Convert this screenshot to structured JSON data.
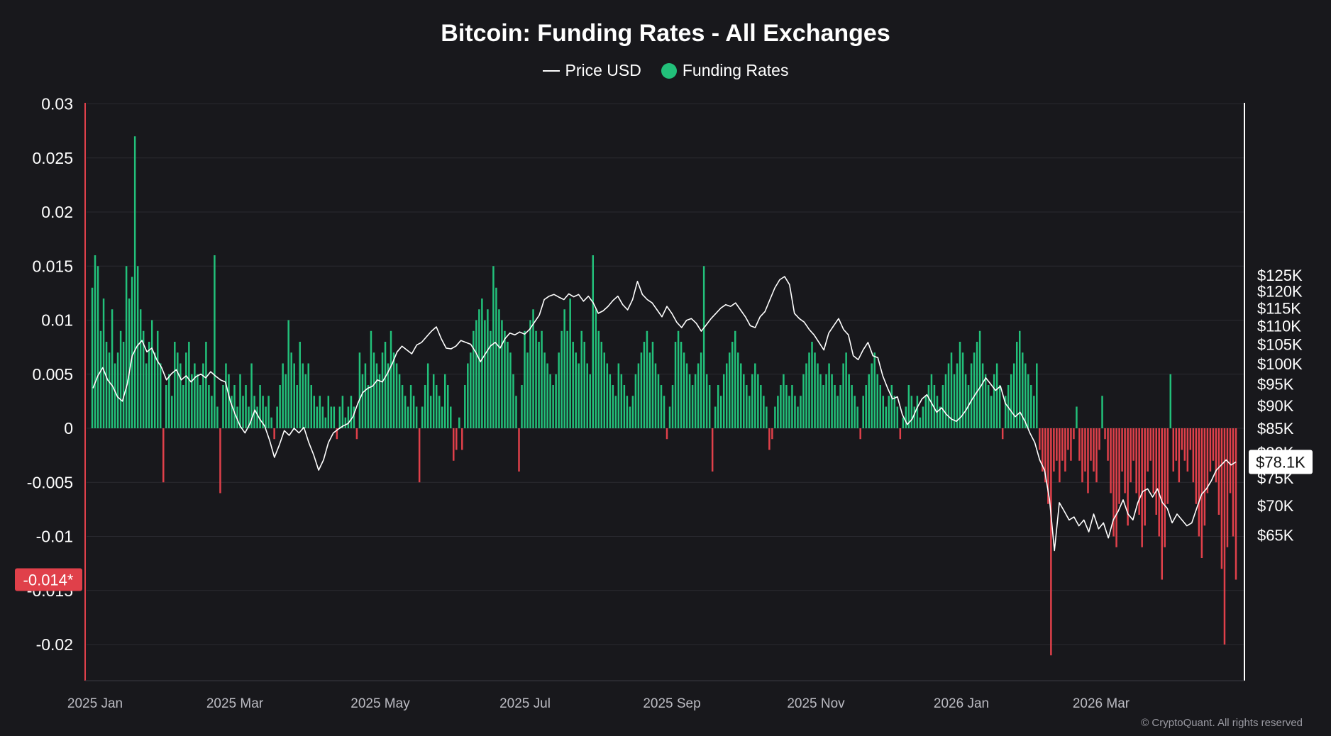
{
  "title": "Bitcoin: Funding Rates - All Exchanges",
  "legend": {
    "price_label": "Price USD",
    "funding_label": "Funding Rates"
  },
  "colors": {
    "background": "#18181c",
    "grid": "#2a2a30",
    "positive": "#22c07a",
    "negative": "#e0404a",
    "price": "#ffffff"
  },
  "watermark": "© CryptoQuant. All rights reserved",
  "chart_data": {
    "type": "bar",
    "x_ticks": [
      "2025 Jan",
      "2025 Mar",
      "2025 May",
      "2025 Jul",
      "2025 Sep",
      "2025 Nov",
      "2026 Jan",
      "2026 Mar"
    ],
    "y_left": {
      "ticks": [
        0.03,
        0.025,
        0.02,
        0.015,
        0.01,
        0.005,
        0,
        -0.005,
        -0.01,
        -0.015,
        -0.02
      ],
      "tick_labels": [
        "0.03",
        "0.025",
        "0.02",
        "0.015",
        "0.01",
        "0.005",
        "0",
        "-0.005",
        "-0.01",
        "-0.015",
        "-0.02"
      ],
      "range": [
        -0.0235,
        0.03
      ]
    },
    "y_right": {
      "tick_values": [
        125000,
        120000,
        115000,
        110000,
        105000,
        100000,
        95000,
        90000,
        85000,
        80000,
        75000,
        70000,
        65000
      ],
      "tick_labels": [
        "$125K",
        "$120K",
        "$115K",
        "$110K",
        "$105K",
        "$100K",
        "$95K",
        "$90K",
        "$85K",
        "$80K",
        "$75K",
        "$70K",
        "$65K"
      ],
      "scale": "log"
    },
    "current_funding_label": "-0.014*",
    "current_funding_value": -0.014,
    "current_price_label": "$78.1K",
    "current_price_value": 78100,
    "series": [
      {
        "name": "Funding Rates",
        "values": [
          0.013,
          0.016,
          0.015,
          0.009,
          0.012,
          0.008,
          0.007,
          0.011,
          0.006,
          0.007,
          0.009,
          0.008,
          0.015,
          0.012,
          0.014,
          0.027,
          0.015,
          0.011,
          0.009,
          0.006,
          0.008,
          0.01,
          0.007,
          0.009,
          0.006,
          -0.005,
          0.004,
          0.005,
          0.003,
          0.008,
          0.007,
          0.006,
          0.004,
          0.007,
          0.008,
          0.005,
          0.006,
          0.005,
          0.004,
          0.006,
          0.008,
          0.004,
          0.003,
          0.016,
          0.002,
          -0.006,
          0.004,
          0.006,
          0.005,
          0.003,
          0.004,
          0.002,
          0.005,
          0.003,
          0.004,
          0.002,
          0.006,
          0.003,
          0.002,
          0.004,
          0.003,
          0.002,
          0.003,
          0.001,
          -0.001,
          0.002,
          0.004,
          0.006,
          0.005,
          0.01,
          0.007,
          0.006,
          0.004,
          0.008,
          0.006,
          0.005,
          0.006,
          0.004,
          0.003,
          0.002,
          0.003,
          0.002,
          0.001,
          0.003,
          0.002,
          0.002,
          -0.001,
          0.002,
          0.003,
          0.001,
          0.002,
          0.003,
          0.002,
          -0.001,
          0.007,
          0.005,
          0.006,
          0.004,
          0.009,
          0.007,
          0.006,
          0.005,
          0.007,
          0.008,
          0.006,
          0.009,
          0.007,
          0.006,
          0.005,
          0.004,
          0.003,
          0.002,
          0.004,
          0.003,
          0.002,
          -0.005,
          0.002,
          0.004,
          0.006,
          0.003,
          0.005,
          0.004,
          0.003,
          0.002,
          0.005,
          0.004,
          0.002,
          -0.003,
          -0.002,
          0.001,
          -0.002,
          0.004,
          0.006,
          0.007,
          0.009,
          0.01,
          0.011,
          0.012,
          0.01,
          0.011,
          0.009,
          0.015,
          0.013,
          0.011,
          0.01,
          0.009,
          0.008,
          0.007,
          0.005,
          0.003,
          -0.004,
          0.004,
          0.009,
          0.007,
          0.01,
          0.011,
          0.009,
          0.008,
          0.009,
          0.007,
          0.006,
          0.005,
          0.004,
          0.005,
          0.007,
          0.009,
          0.011,
          0.009,
          0.012,
          0.008,
          0.007,
          0.006,
          0.009,
          0.008,
          0.006,
          0.005,
          0.016,
          0.011,
          0.009,
          0.008,
          0.007,
          0.006,
          0.005,
          0.004,
          0.003,
          0.006,
          0.005,
          0.004,
          0.003,
          0.002,
          0.003,
          0.005,
          0.006,
          0.007,
          0.008,
          0.009,
          0.007,
          0.008,
          0.006,
          0.005,
          0.004,
          0.003,
          -0.001,
          0.002,
          0.004,
          0.008,
          0.009,
          0.008,
          0.007,
          0.006,
          0.005,
          0.004,
          0.005,
          0.006,
          0.007,
          0.015,
          0.005,
          0.004,
          -0.004,
          0.002,
          0.004,
          0.003,
          0.005,
          0.006,
          0.007,
          0.008,
          0.009,
          0.007,
          0.006,
          0.005,
          0.004,
          0.003,
          0.005,
          0.006,
          0.005,
          0.004,
          0.003,
          0.002,
          -0.002,
          -0.001,
          0.002,
          0.003,
          0.004,
          0.005,
          0.004,
          0.003,
          0.004,
          0.003,
          0.002,
          0.003,
          0.005,
          0.006,
          0.007,
          0.008,
          0.007,
          0.006,
          0.005,
          0.004,
          0.005,
          0.006,
          0.005,
          0.004,
          0.003,
          0.004,
          0.006,
          0.007,
          0.005,
          0.004,
          0.003,
          0.002,
          -0.001,
          0.003,
          0.004,
          0.005,
          0.006,
          0.007,
          0.005,
          0.004,
          0.003,
          0.002,
          0.003,
          0.004,
          0.003,
          0.002,
          -0.001,
          0.001,
          0.002,
          0.004,
          0.003,
          0.002,
          0.003,
          0.001,
          0.002,
          0.003,
          0.004,
          0.005,
          0.004,
          0.003,
          0.002,
          0.004,
          0.005,
          0.006,
          0.007,
          0.005,
          0.006,
          0.008,
          0.007,
          0.005,
          0.004,
          0.006,
          0.007,
          0.008,
          0.009,
          0.006,
          0.005,
          0.004,
          0.003,
          0.005,
          0.006,
          0.004,
          -0.001,
          0.003,
          0.004,
          0.005,
          0.006,
          0.008,
          0.009,
          0.007,
          0.006,
          0.005,
          0.004,
          0.003,
          0.006,
          -0.002,
          -0.004,
          -0.005,
          -0.007,
          -0.021,
          -0.004,
          -0.003,
          -0.005,
          -0.003,
          -0.004,
          -0.002,
          -0.003,
          -0.001,
          0.002,
          -0.003,
          -0.005,
          -0.004,
          -0.006,
          -0.003,
          -0.004,
          -0.005,
          -0.002,
          0.003,
          -0.001,
          -0.003,
          -0.006,
          -0.01,
          -0.011,
          -0.007,
          -0.004,
          -0.006,
          -0.009,
          -0.005,
          -0.003,
          -0.006,
          -0.008,
          -0.011,
          -0.009,
          -0.004,
          -0.003,
          -0.006,
          -0.008,
          -0.01,
          -0.014,
          -0.011,
          -0.007,
          0.005,
          -0.004,
          -0.003,
          -0.005,
          -0.002,
          -0.003,
          -0.004,
          -0.002,
          -0.005,
          -0.007,
          -0.01,
          -0.012,
          -0.009,
          -0.006,
          -0.004,
          -0.003,
          -0.005,
          -0.008,
          -0.013,
          -0.02,
          -0.011,
          -0.006,
          -0.01,
          -0.014
        ]
      },
      {
        "name": "Price USD",
        "values": [
          94000,
          97000,
          99000,
          96000,
          94500,
          92000,
          91000,
          95000,
          102000,
          104500,
          106000,
          103000,
          104000,
          101000,
          99000,
          96000,
          97500,
          98500,
          96000,
          97000,
          95500,
          96800,
          97400,
          96500,
          98000,
          96900,
          96000,
          95500,
          91000,
          88000,
          85500,
          84000,
          86000,
          89000,
          87000,
          85500,
          82500,
          79000,
          81500,
          84500,
          83500,
          85000,
          84000,
          85200,
          82000,
          79500,
          76500,
          78500,
          82000,
          84000,
          84800,
          85500,
          86000,
          87500,
          90500,
          93000,
          94000,
          94500,
          96000,
          95500,
          97500,
          100000,
          103000,
          104500,
          103500,
          102500,
          104800,
          105500,
          107000,
          108500,
          109700,
          106500,
          104000,
          103800,
          104500,
          106000,
          105500,
          105000,
          103000,
          100500,
          102500,
          104500,
          105500,
          104000,
          106500,
          108000,
          107500,
          108300,
          107700,
          109000,
          111000,
          113000,
          117500,
          118500,
          119000,
          118200,
          117500,
          119200,
          118300,
          119000,
          117000,
          118500,
          116500,
          113500,
          114200,
          115500,
          117200,
          118500,
          116000,
          114500,
          117500,
          123000,
          119000,
          117500,
          116500,
          114500,
          112500,
          115500,
          113500,
          111000,
          109500,
          111500,
          112000,
          110700,
          108500,
          110200,
          112000,
          113500,
          115000,
          116000,
          115500,
          116500,
          114500,
          112500,
          110000,
          109500,
          112500,
          114000,
          117500,
          121000,
          123500,
          124500,
          122000,
          113500,
          112000,
          111000,
          109000,
          107500,
          105500,
          103500,
          108000,
          110000,
          112000,
          109000,
          107500,
          102000,
          101000,
          103500,
          105500,
          102000,
          101500,
          97000,
          94000,
          91500,
          92000,
          88000,
          85800,
          87000,
          89500,
          91500,
          92500,
          90500,
          88500,
          89500,
          88000,
          87000,
          86500,
          87500,
          89000,
          91000,
          92800,
          94500,
          96500,
          95000,
          93500,
          94500,
          90500,
          89000,
          87500,
          88500,
          86500,
          84000,
          82000,
          78500,
          76500,
          71000,
          62500,
          70500,
          69000,
          67500,
          68000,
          66500,
          67500,
          65500,
          68500,
          66000,
          67000,
          64500,
          67500,
          69000,
          71000,
          68500,
          67500,
          70500,
          72500,
          73000,
          71500,
          73000,
          70500,
          69500,
          67000,
          68500,
          67500,
          66500,
          67000,
          69500,
          72000,
          73000,
          74500,
          76500,
          77500,
          78500,
          77500,
          78100
        ]
      }
    ]
  }
}
